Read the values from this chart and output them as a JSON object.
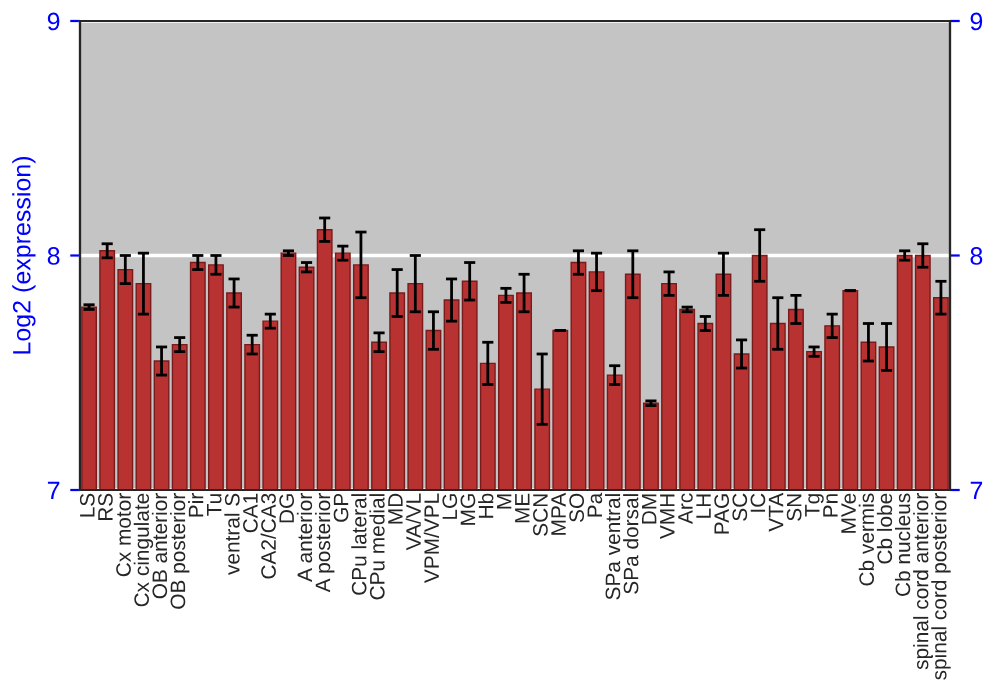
{
  "chart_data": {
    "type": "bar",
    "ylabel": "Log2 (expression)",
    "categories": [
      "LS",
      "RS",
      "Cx motor",
      "Cx cingulate",
      "OB anterior",
      "OB posterior",
      "Pir",
      "Tu",
      "ventral S",
      "CA1",
      "CA2/CA3",
      "DG",
      "A anterior",
      "A posterior",
      "GP",
      "CPu lateral",
      "CPu medial",
      "MD",
      "VA/VL",
      "VPM/VPL",
      "LG",
      "MG",
      "Hb",
      "M",
      "ME",
      "SCN",
      "MPA",
      "SO",
      "Pa",
      "SPa ventral",
      "SPa dorsal",
      "DM",
      "VMH",
      "Arc",
      "LH",
      "PAG",
      "SC",
      "IC",
      "VTA",
      "SN",
      "Tg",
      "Pn",
      "MVe",
      "Cb vermis",
      "Cb lobe",
      "Cb nucleus",
      "spinal cord anterior",
      "spinal cord posterior"
    ],
    "values": [
      7.78,
      8.02,
      7.94,
      7.88,
      7.55,
      7.62,
      7.97,
      7.96,
      7.84,
      7.62,
      7.72,
      8.01,
      7.95,
      8.11,
      8.01,
      7.96,
      7.63,
      7.84,
      7.88,
      7.68,
      7.81,
      7.89,
      7.54,
      7.83,
      7.84,
      7.43,
      7.68,
      7.97,
      7.93,
      7.49,
      7.92,
      7.37,
      7.88,
      7.77,
      7.71,
      7.92,
      7.58,
      8.0,
      7.71,
      7.77,
      7.59,
      7.7,
      7.85,
      7.63,
      7.61,
      8.0,
      8.0,
      7.82
    ],
    "errors": [
      0.01,
      0.03,
      0.06,
      0.13,
      0.06,
      0.03,
      0.03,
      0.04,
      0.06,
      0.04,
      0.03,
      0.01,
      0.02,
      0.05,
      0.03,
      0.14,
      0.04,
      0.1,
      0.12,
      0.08,
      0.09,
      0.08,
      0.09,
      0.03,
      0.08,
      0.15,
      0.0,
      0.05,
      0.08,
      0.04,
      0.1,
      0.01,
      0.05,
      0.01,
      0.03,
      0.09,
      0.06,
      0.11,
      0.11,
      0.06,
      0.02,
      0.05,
      0.0,
      0.08,
      0.1,
      0.02,
      0.05,
      0.07
    ],
    "color": "#b83232",
    "ylim": [
      7,
      9
    ],
    "yticks": [
      7,
      8,
      9
    ],
    "y2lim": [
      7,
      9
    ],
    "y2ticks": [
      7,
      8,
      9
    ],
    "grid": "y"
  }
}
